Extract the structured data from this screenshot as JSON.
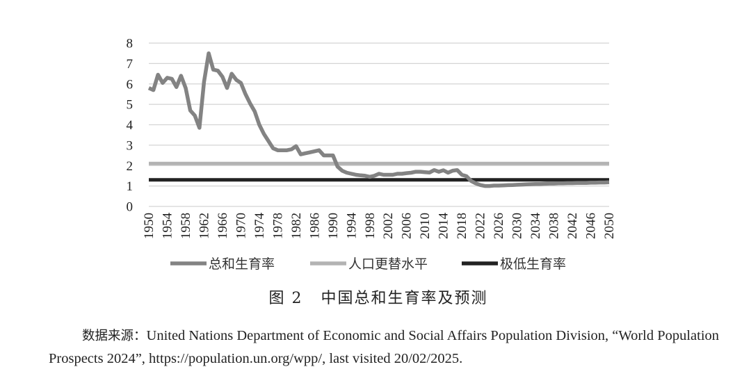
{
  "chart_data": {
    "type": "line",
    "ylim": [
      0,
      8
    ],
    "yticks": [
      0,
      1,
      2,
      3,
      4,
      5,
      6,
      7,
      8
    ],
    "xlim": [
      1950,
      2050
    ],
    "xticks": [
      "1950",
      "1954",
      "1958",
      "1962",
      "1966",
      "1970",
      "1974",
      "1978",
      "1982",
      "1986",
      "1990",
      "1994",
      "1998",
      "2002",
      "2006",
      "2010",
      "2014",
      "2018",
      "2022",
      "2026",
      "2030",
      "2034",
      "2038",
      "2042",
      "2046",
      "2050"
    ],
    "grid": true,
    "legend_position": "bottom",
    "series": [
      {
        "name": "总和生育率",
        "color": "#838383",
        "x": [
          1950,
          1951,
          1952,
          1953,
          1954,
          1955,
          1956,
          1957,
          1958,
          1959,
          1960,
          1961,
          1962,
          1963,
          1964,
          1965,
          1966,
          1967,
          1968,
          1969,
          1970,
          1971,
          1972,
          1973,
          1974,
          1975,
          1976,
          1977,
          1978,
          1979,
          1980,
          1981,
          1982,
          1983,
          1984,
          1985,
          1986,
          1987,
          1988,
          1989,
          1990,
          1991,
          1992,
          1993,
          1994,
          1995,
          1996,
          1997,
          1998,
          1999,
          2000,
          2001,
          2002,
          2003,
          2004,
          2005,
          2006,
          2007,
          2008,
          2009,
          2010,
          2011,
          2012,
          2013,
          2014,
          2015,
          2016,
          2017,
          2018,
          2019,
          2020,
          2021,
          2022,
          2023,
          2024,
          2025,
          2026,
          2027,
          2028,
          2029,
          2030,
          2031,
          2032,
          2033,
          2034,
          2035,
          2036,
          2037,
          2038,
          2039,
          2040,
          2041,
          2042,
          2043,
          2044,
          2045,
          2046,
          2047,
          2048,
          2049,
          2050
        ],
        "values": [
          5.8,
          5.7,
          6.45,
          6.05,
          6.3,
          6.25,
          5.85,
          6.4,
          5.8,
          4.7,
          4.45,
          3.85,
          6.1,
          7.5,
          6.7,
          6.65,
          6.35,
          5.8,
          6.5,
          6.2,
          6.05,
          5.5,
          5.05,
          4.65,
          4.0,
          3.55,
          3.2,
          2.85,
          2.75,
          2.75,
          2.75,
          2.8,
          2.95,
          2.55,
          2.6,
          2.65,
          2.7,
          2.75,
          2.5,
          2.5,
          2.5,
          1.95,
          1.75,
          1.65,
          1.6,
          1.55,
          1.52,
          1.5,
          1.45,
          1.5,
          1.6,
          1.55,
          1.55,
          1.55,
          1.6,
          1.6,
          1.63,
          1.65,
          1.7,
          1.7,
          1.68,
          1.66,
          1.78,
          1.7,
          1.77,
          1.65,
          1.75,
          1.78,
          1.55,
          1.48,
          1.25,
          1.13,
          1.05,
          1.0,
          1.0,
          1.02,
          1.02,
          1.03,
          1.04,
          1.05,
          1.06,
          1.07,
          1.08,
          1.09,
          1.1,
          1.1,
          1.11,
          1.12,
          1.12,
          1.13,
          1.13,
          1.14,
          1.14,
          1.15,
          1.15,
          1.15,
          1.16,
          1.16,
          1.17,
          1.17,
          1.18
        ]
      },
      {
        "name": "人口更替水平",
        "color": "#b3b3b3",
        "x": [
          1950,
          2050
        ],
        "values": [
          2.1,
          2.1
        ]
      },
      {
        "name": "极低生育率",
        "color": "#222222",
        "x": [
          1950,
          2050
        ],
        "values": [
          1.3,
          1.3
        ]
      }
    ]
  },
  "figure": {
    "caption_label": "图 2",
    "caption_title": "中国总和生育率及预测"
  },
  "source": {
    "lead": "数据来源：",
    "text": "United Nations Department of Economic and Social Affairs Population Division, “World Population Prospects 2024”, https://population.un.org/wpp/, last visited 20/02/2025."
  }
}
